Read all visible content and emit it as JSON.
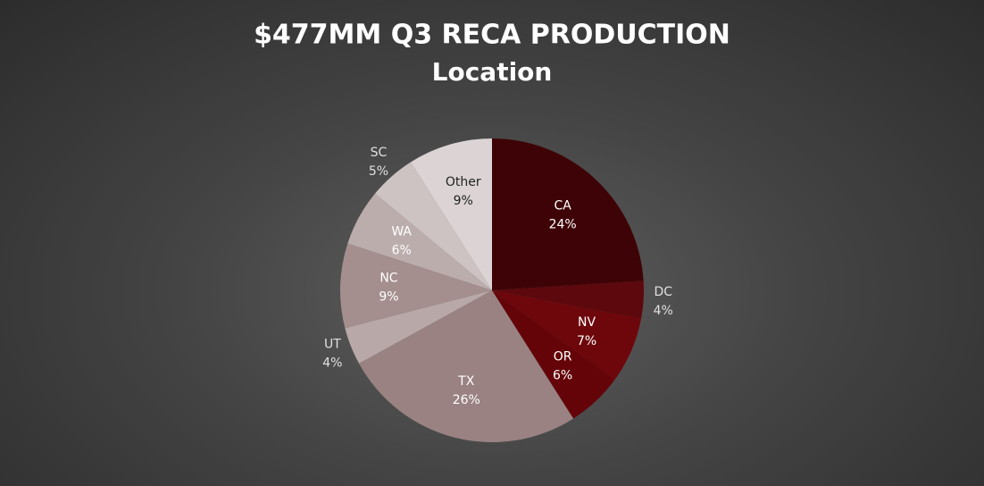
{
  "chart_data": {
    "type": "pie",
    "title": "$477MM Q3 RECA PRODUCTION",
    "subtitle": "Location",
    "categories": [
      "CA",
      "DC",
      "NV",
      "OR",
      "TX",
      "UT",
      "NC",
      "WA",
      "SC",
      "Other"
    ],
    "values": [
      24,
      4,
      7,
      6,
      26,
      4,
      9,
      6,
      5,
      9
    ],
    "value_labels": [
      "24%",
      "4%",
      "7%",
      "6%",
      "26%",
      "4%",
      "9%",
      "6%",
      "5%",
      "9%"
    ],
    "colors": [
      "#3e0306",
      "#5c080c",
      "#6e070b",
      "#640409",
      "#9a8282",
      "#b8a8a8",
      "#a58e8e",
      "#bcadad",
      "#cec3c3",
      "#dcd4d4"
    ]
  }
}
